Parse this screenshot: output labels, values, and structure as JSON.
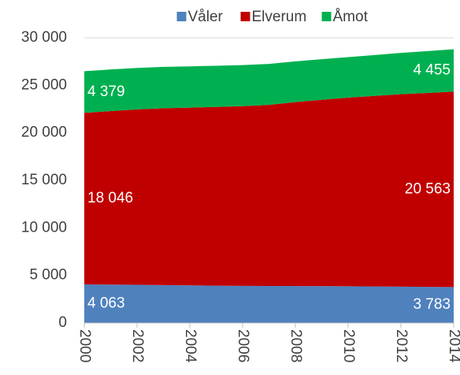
{
  "chart_data": {
    "type": "stacked_area",
    "x": [
      2000,
      2001,
      2002,
      2003,
      2004,
      2005,
      2006,
      2007,
      2008,
      2009,
      2010,
      2011,
      2012,
      2013,
      2014
    ],
    "xlim": [
      2000,
      2014
    ],
    "xticks": [
      2000,
      2002,
      2004,
      2006,
      2008,
      2010,
      2012,
      2014
    ],
    "ylim": [
      0,
      30000
    ],
    "yticks": [
      0,
      {
        "value": 5000,
        "label": "5 000"
      },
      {
        "value": 10000,
        "label": "10 000"
      },
      {
        "value": 15000,
        "label": "15 000"
      },
      {
        "value": 20000,
        "label": "20 000"
      },
      {
        "value": 25000,
        "label": "25 000"
      },
      {
        "value": 30000,
        "label": "30 000"
      }
    ],
    "grid": true,
    "legend": "top",
    "series": [
      {
        "name": "Våler",
        "color": "#4f81bd",
        "values": [
          4063,
          4040,
          4020,
          3990,
          3960,
          3930,
          3910,
          3900,
          3890,
          3880,
          3860,
          3840,
          3820,
          3800,
          3783
        ],
        "value_labels": [
          "4 063",
          null,
          null,
          null,
          null,
          null,
          null,
          null,
          null,
          null,
          null,
          null,
          null,
          null,
          "3 783"
        ]
      },
      {
        "name": "Elverum",
        "color": "#c00000",
        "values": [
          18046,
          18250,
          18450,
          18600,
          18700,
          18800,
          18900,
          19050,
          19350,
          19600,
          19850,
          20050,
          20250,
          20400,
          20563
        ],
        "value_labels": [
          "18 046",
          null,
          null,
          null,
          null,
          null,
          null,
          null,
          null,
          null,
          null,
          null,
          null,
          null,
          "20 563"
        ]
      },
      {
        "name": "Åmot",
        "color": "#00b050",
        "values": [
          4379,
          4380,
          4360,
          4350,
          4340,
          4330,
          4320,
          4300,
          4280,
          4270,
          4260,
          4300,
          4350,
          4400,
          4455
        ],
        "value_labels": [
          "4 379",
          null,
          null,
          null,
          null,
          null,
          null,
          null,
          null,
          null,
          null,
          null,
          null,
          null,
          "4 455"
        ]
      }
    ]
  }
}
